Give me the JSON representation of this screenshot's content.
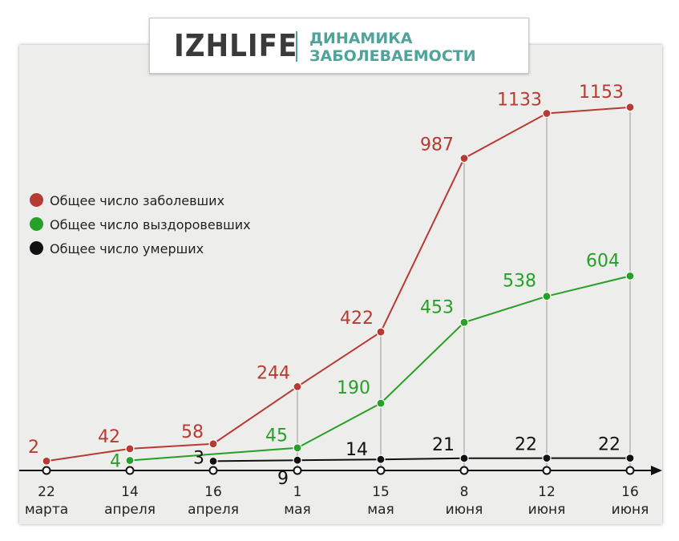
{
  "header": {
    "logo": "IZHLIFE",
    "title_line1": "ДИНАМИКА",
    "title_line2": "ЗАБОЛЕВАЕМОСТИ"
  },
  "legend": [
    {
      "label": "Общее число заболевших",
      "color": "#b83a32"
    },
    {
      "label": "Общее число выздоровевших",
      "color": "#27a027"
    },
    {
      "label": "Общее число умерших",
      "color": "#111111"
    }
  ],
  "chart_data": {
    "type": "line",
    "categories": [
      [
        "22",
        "марта"
      ],
      [
        "14",
        "апреля"
      ],
      [
        "16",
        "апреля"
      ],
      [
        "1",
        "мая"
      ],
      [
        "15",
        "мая"
      ],
      [
        "8",
        "июня"
      ],
      [
        "12",
        "июня"
      ],
      [
        "16",
        "июня"
      ]
    ],
    "series": [
      {
        "name": "Общее число заболевших",
        "color": "#b83a32",
        "values": [
          2,
          42,
          58,
          244,
          422,
          987,
          1133,
          1153
        ]
      },
      {
        "name": "Общее число выздоровевших",
        "color": "#27a027",
        "values": [
          null,
          4,
          null,
          45,
          190,
          453,
          538,
          604
        ]
      },
      {
        "name": "Общее число умерших",
        "color": "#111111",
        "values": [
          null,
          null,
          3,
          9,
          14,
          21,
          22,
          22
        ]
      }
    ]
  }
}
